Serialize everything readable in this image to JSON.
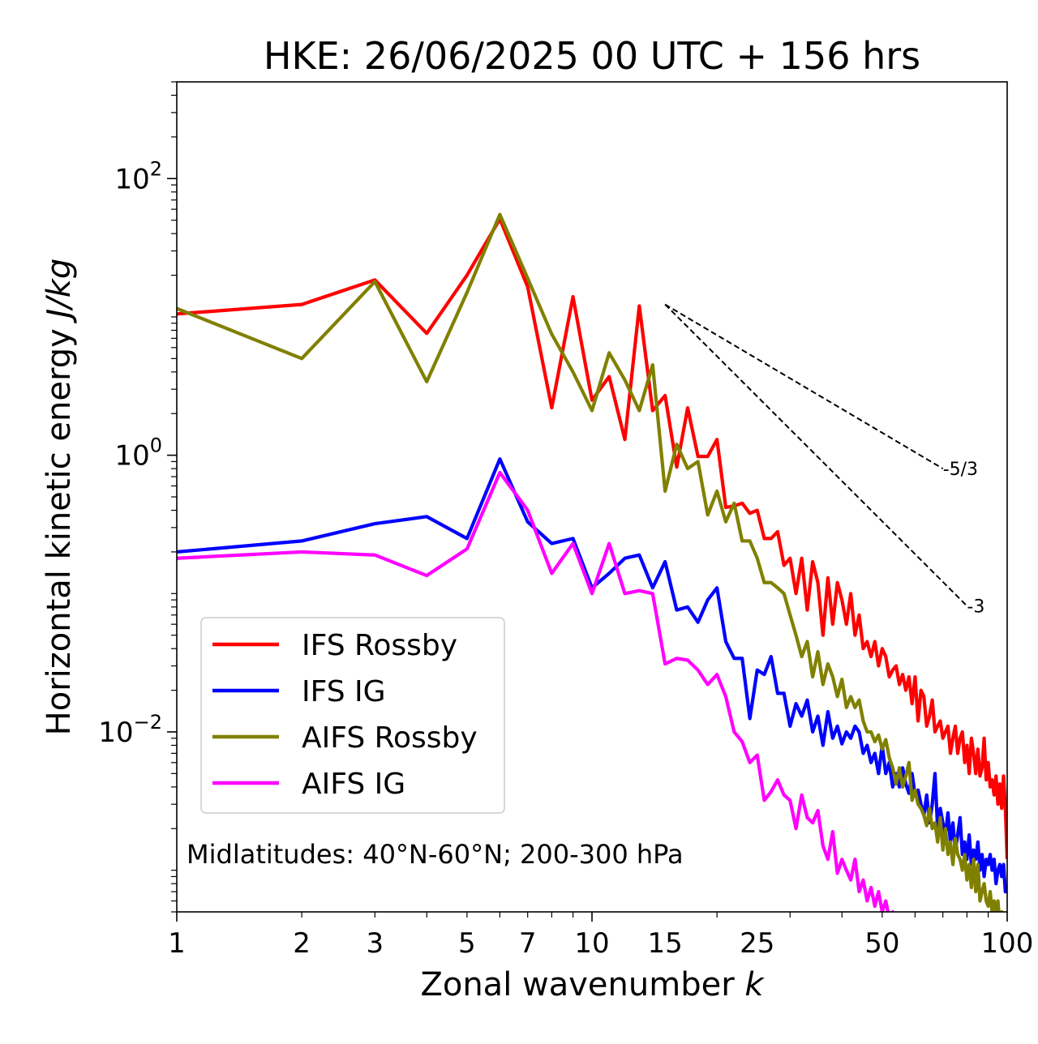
{
  "chart_data": {
    "type": "line",
    "title": "HKE: 26/06/2025 00 UTC + 156 hrs",
    "xlabel": "Zonal wavenumber",
    "xlabel_italic": "k",
    "ylabel": "Horizontal kinetic energy",
    "ylabel_italic": "J/kg",
    "xscale": "log",
    "yscale": "log",
    "xlim": [
      1,
      100
    ],
    "ylim": [
      0.0005,
      500
    ],
    "x_ticks": [
      1,
      2,
      3,
      5,
      7,
      10,
      15,
      25,
      50,
      100
    ],
    "x_tick_labels": [
      "1",
      "2",
      "3",
      "5",
      "7",
      "10",
      "15",
      "25",
      "50",
      "100"
    ],
    "y_ticks": [
      {
        "value": 100,
        "base": "10",
        "exp": "2"
      },
      {
        "value": 1,
        "base": "10",
        "exp": "0"
      },
      {
        "value": 0.01,
        "base": "10",
        "exp": "−2"
      }
    ],
    "legend_position": "lower-left",
    "annotation": "Midlatitudes: 40°N-60°N; 200-300 hPa",
    "reference_slopes": [
      {
        "label": "-5/3",
        "x": [
          15,
          70
        ],
        "y": [
          12.3,
          0.8
        ]
      },
      {
        "label": "-3",
        "x": [
          15,
          80
        ],
        "y": [
          12.3,
          0.0814
        ]
      }
    ],
    "series": [
      {
        "name": "IFS Rossby",
        "color": "#ff0000",
        "x": [
          1,
          2,
          3,
          4,
          5,
          6,
          7,
          8,
          9,
          10,
          11,
          12,
          13,
          14,
          15,
          16,
          17,
          18,
          19,
          20,
          21,
          22,
          23,
          24,
          25,
          26,
          27,
          28,
          29,
          30,
          31,
          32,
          33,
          34,
          35,
          36,
          37,
          38,
          39,
          40,
          41,
          42,
          43,
          44,
          45,
          46,
          47,
          48,
          49,
          50,
          51,
          52,
          53,
          54,
          55,
          56,
          57,
          58,
          59,
          60,
          61,
          62,
          63,
          64,
          65,
          66,
          67,
          68,
          69,
          70,
          71,
          72,
          73,
          74,
          75,
          76,
          77,
          78,
          79,
          80,
          81,
          82,
          83,
          84,
          85,
          86,
          87,
          88,
          89,
          90,
          91,
          92,
          93,
          94,
          95,
          96,
          97,
          98,
          99,
          100
        ],
        "y": [
          10.5,
          12.3,
          18.5,
          7.6,
          20,
          51,
          16.5,
          2.2,
          14,
          2.5,
          3.7,
          1.3,
          12,
          2.1,
          2.7,
          0.82,
          2.2,
          0.98,
          0.98,
          1.3,
          0.42,
          0.43,
          0.45,
          0.38,
          0.4,
          0.25,
          0.25,
          0.28,
          0.16,
          0.18,
          0.1,
          0.18,
          0.076,
          0.17,
          0.12,
          0.05,
          0.13,
          0.06,
          0.12,
          0.09,
          0.06,
          0.1,
          0.05,
          0.07,
          0.04,
          0.045,
          0.035,
          0.045,
          0.03,
          0.04,
          0.035,
          0.025,
          0.028,
          0.03,
          0.022,
          0.026,
          0.02,
          0.025,
          0.016,
          0.025,
          0.012,
          0.02,
          0.018,
          0.011,
          0.013,
          0.017,
          0.01,
          0.011,
          0.012,
          0.009,
          0.01,
          0.011,
          0.007,
          0.009,
          0.011,
          0.007,
          0.009,
          0.01,
          0.006,
          0.008,
          0.005,
          0.009,
          0.007,
          0.005,
          0.0075,
          0.0048,
          0.0055,
          0.009,
          0.0045,
          0.006,
          0.004,
          0.0045,
          0.0035,
          0.0048,
          0.003,
          0.0042,
          0.0028,
          0.0048,
          0.0028,
          0.0012
        ]
      },
      {
        "name": "IFS IG",
        "color": "#0000ff",
        "x": [
          1,
          2,
          3,
          4,
          5,
          6,
          7,
          8,
          9,
          10,
          11,
          12,
          13,
          14,
          15,
          16,
          17,
          18,
          19,
          20,
          21,
          22,
          23,
          24,
          25,
          26,
          27,
          28,
          29,
          30,
          31,
          32,
          33,
          34,
          35,
          36,
          37,
          38,
          39,
          40,
          41,
          42,
          43,
          44,
          45,
          46,
          47,
          48,
          49,
          50,
          51,
          52,
          53,
          54,
          55,
          56,
          57,
          58,
          59,
          60,
          61,
          62,
          63,
          64,
          65,
          66,
          67,
          68,
          69,
          70,
          71,
          72,
          73,
          74,
          75,
          76,
          77,
          78,
          79,
          80,
          81,
          82,
          83,
          84,
          85,
          86,
          87,
          88,
          89,
          90,
          91,
          92,
          93,
          94,
          95,
          96,
          97,
          98,
          99,
          100
        ],
        "y": [
          0.2,
          0.24,
          0.32,
          0.36,
          0.25,
          0.94,
          0.33,
          0.23,
          0.25,
          0.11,
          0.14,
          0.18,
          0.19,
          0.11,
          0.17,
          0.076,
          0.08,
          0.062,
          0.09,
          0.11,
          0.045,
          0.034,
          0.034,
          0.0125,
          0.028,
          0.026,
          0.035,
          0.019,
          0.019,
          0.011,
          0.016,
          0.013,
          0.017,
          0.01,
          0.013,
          0.008,
          0.014,
          0.009,
          0.011,
          0.0082,
          0.01,
          0.009,
          0.011,
          0.01,
          0.007,
          0.008,
          0.006,
          0.007,
          0.005,
          0.008,
          0.005,
          0.006,
          0.004,
          0.005,
          0.004,
          0.0055,
          0.0042,
          0.0036,
          0.005,
          0.0035,
          0.0038,
          0.003,
          0.0025,
          0.0035,
          0.0022,
          0.003,
          0.005,
          0.002,
          0.0028,
          0.0022,
          0.0018,
          0.0026,
          0.0016,
          0.0022,
          0.0014,
          0.0018,
          0.0024,
          0.0013,
          0.0016,
          0.0012,
          0.0018,
          0.0011,
          0.0014,
          0.0012,
          0.0016,
          0.001,
          0.0013,
          0.0009,
          0.0012,
          0.0011,
          0.0013,
          0.001,
          0.0012,
          0.0008,
          0.001,
          0.0011,
          0.0009,
          0.0011,
          0.0007,
          0.0007
        ]
      },
      {
        "name": "AIFS Rossby",
        "color": "#808000",
        "x": [
          1,
          2,
          3,
          4,
          5,
          6,
          7,
          8,
          9,
          10,
          11,
          12,
          13,
          14,
          15,
          16,
          17,
          18,
          19,
          20,
          21,
          22,
          23,
          24,
          25,
          26,
          27,
          28,
          29,
          30,
          31,
          32,
          33,
          34,
          35,
          36,
          37,
          38,
          39,
          40,
          41,
          42,
          43,
          44,
          45,
          46,
          47,
          48,
          49,
          50,
          51,
          52,
          53,
          54,
          55,
          56,
          57,
          58,
          59,
          60,
          61,
          62,
          63,
          64,
          65,
          66,
          67,
          68,
          69,
          70,
          71,
          72,
          73,
          74,
          75,
          76,
          77,
          78,
          79,
          80,
          81,
          82,
          83,
          84,
          85,
          86,
          87,
          88,
          89,
          90,
          91,
          92,
          93,
          94,
          95,
          96,
          97,
          98,
          99,
          100
        ],
        "y": [
          11.5,
          5.0,
          18,
          3.4,
          15,
          55,
          19,
          7.5,
          4.0,
          2.1,
          5.5,
          3.5,
          2.1,
          4.5,
          0.55,
          1.2,
          0.8,
          0.9,
          0.37,
          0.55,
          0.33,
          0.45,
          0.24,
          0.24,
          0.18,
          0.12,
          0.12,
          0.11,
          0.1,
          0.07,
          0.05,
          0.035,
          0.045,
          0.025,
          0.038,
          0.022,
          0.031,
          0.025,
          0.018,
          0.024,
          0.015,
          0.018,
          0.015,
          0.017,
          0.012,
          0.01,
          0.01,
          0.0085,
          0.0095,
          0.0075,
          0.0088,
          0.0065,
          0.0055,
          0.0042,
          0.0055,
          0.004,
          0.0048,
          0.006,
          0.0032,
          0.0038,
          0.003,
          0.0028,
          0.0025,
          0.0021,
          0.0028,
          0.002,
          0.0022,
          0.0016,
          0.0024,
          0.0014,
          0.002,
          0.0013,
          0.0016,
          0.0011,
          0.0017,
          0.0013,
          0.0012,
          0.001,
          0.0013,
          0.00085,
          0.0011,
          0.00075,
          0.0012,
          0.0007,
          0.0011,
          0.0006,
          0.0007,
          0.0008,
          0.0006,
          0.00055,
          0.0007,
          0.0005,
          0.0006,
          0.0005,
          0.0006,
          0.0004,
          0.0005,
          0.0004,
          0.0004,
          0.0004
        ]
      },
      {
        "name": "AIFS IG",
        "color": "#ff00ff",
        "x": [
          1,
          2,
          3,
          4,
          5,
          6,
          7,
          8,
          9,
          10,
          11,
          12,
          13,
          14,
          15,
          16,
          17,
          18,
          19,
          20,
          21,
          22,
          23,
          24,
          25,
          26,
          27,
          28,
          29,
          30,
          31,
          32,
          33,
          34,
          35,
          36,
          37,
          38,
          39,
          40,
          41,
          42,
          43,
          44,
          45,
          46,
          47,
          48,
          49,
          50,
          51,
          52,
          53,
          54,
          55,
          56,
          57,
          58,
          59,
          60,
          61,
          62,
          63,
          64,
          65,
          66,
          67,
          68,
          69,
          70,
          71,
          72,
          73,
          74,
          75,
          76,
          77,
          78,
          79,
          80,
          81,
          82,
          83,
          84,
          85,
          86,
          87,
          88,
          89,
          90,
          91,
          92,
          93,
          94,
          95,
          96,
          97,
          98,
          99,
          100
        ],
        "y": [
          0.18,
          0.2,
          0.19,
          0.135,
          0.21,
          0.75,
          0.4,
          0.14,
          0.23,
          0.1,
          0.23,
          0.1,
          0.105,
          0.1,
          0.031,
          0.034,
          0.033,
          0.028,
          0.022,
          0.026,
          0.018,
          0.01,
          0.0085,
          0.006,
          0.0068,
          0.0032,
          0.0037,
          0.0045,
          0.0035,
          0.0032,
          0.002,
          0.0035,
          0.0024,
          0.0022,
          0.0027,
          0.0015,
          0.0012,
          0.0019,
          0.00095,
          0.0012,
          0.001,
          0.00085,
          0.0012,
          0.0007,
          0.00085,
          0.0006,
          0.00075,
          0.00055,
          0.0007,
          0.0005,
          0.0006,
          0.00045,
          0.0005,
          0.0004,
          0.00045,
          0.0004,
          0.0004,
          0.0004,
          0.0004,
          0.0004,
          0.0004,
          0.0004,
          0.0004,
          0.0004,
          0.0004,
          0.0004,
          0.0004,
          0.0004,
          0.0004,
          0.0004,
          0.0004,
          0.0004,
          0.0004,
          0.0004,
          0.0004,
          0.0004,
          0.0004,
          0.0004,
          0.0004,
          0.0004,
          0.0004,
          0.0004,
          0.0004,
          0.0004,
          0.0004,
          0.0004,
          0.0004,
          0.0004,
          0.0004,
          0.0004,
          0.0004,
          0.0004,
          0.0004,
          0.0004,
          0.0004,
          0.0004,
          0.0004,
          0.0004,
          0.0004,
          0.0004
        ]
      }
    ]
  }
}
